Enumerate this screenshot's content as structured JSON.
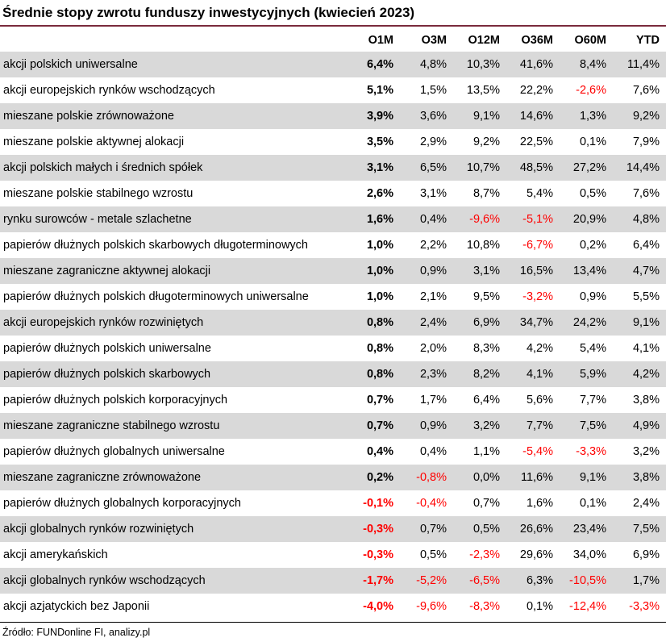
{
  "title": "Średnie stopy zwrotu funduszy inwestycyjnych (kwiecień 2023)",
  "source": "Źródło: FUNDonline FI, analizy.pl",
  "colors": {
    "title_rule": "#7a2a3c",
    "shade": "#d9d9d9",
    "negative": "#ff0000"
  },
  "chart_data": {
    "type": "table",
    "title": "Średnie stopy zwrotu funduszy inwestycyjnych (kwiecień 2023)",
    "columns": [
      "",
      "O1M",
      "O3M",
      "O12M",
      "O36M",
      "O60M",
      "YTD"
    ],
    "rows": [
      [
        "akcji polskich uniwersalne",
        "6,4%",
        "4,8%",
        "10,3%",
        "41,6%",
        "8,4%",
        "11,4%"
      ],
      [
        "akcji europejskich rynków wschodzących",
        "5,1%",
        "1,5%",
        "13,5%",
        "22,2%",
        "-2,6%",
        "7,6%"
      ],
      [
        "mieszane polskie zrównoważone",
        "3,9%",
        "3,6%",
        "9,1%",
        "14,6%",
        "1,3%",
        "9,2%"
      ],
      [
        "mieszane polskie aktywnej alokacji",
        "3,5%",
        "2,9%",
        "9,2%",
        "22,5%",
        "0,1%",
        "7,9%"
      ],
      [
        "akcji polskich małych i średnich spółek",
        "3,1%",
        "6,5%",
        "10,7%",
        "48,5%",
        "27,2%",
        "14,4%"
      ],
      [
        "mieszane polskie stabilnego wzrostu",
        "2,6%",
        "3,1%",
        "8,7%",
        "5,4%",
        "0,5%",
        "7,6%"
      ],
      [
        "rynku surowców - metale szlachetne",
        "1,6%",
        "0,4%",
        "-9,6%",
        "-5,1%",
        "20,9%",
        "4,8%"
      ],
      [
        "papierów dłużnych polskich skarbowych długoterminowych",
        "1,0%",
        "2,2%",
        "10,8%",
        "-6,7%",
        "0,2%",
        "6,4%"
      ],
      [
        "mieszane zagraniczne aktywnej alokacji",
        "1,0%",
        "0,9%",
        "3,1%",
        "16,5%",
        "13,4%",
        "4,7%"
      ],
      [
        "papierów dłużnych polskich długoterminowych uniwersalne",
        "1,0%",
        "2,1%",
        "9,5%",
        "-3,2%",
        "0,9%",
        "5,5%"
      ],
      [
        "akcji europejskich rynków rozwiniętych",
        "0,8%",
        "2,4%",
        "6,9%",
        "34,7%",
        "24,2%",
        "9,1%"
      ],
      [
        "papierów dłużnych polskich uniwersalne",
        "0,8%",
        "2,0%",
        "8,3%",
        "4,2%",
        "5,4%",
        "4,1%"
      ],
      [
        "papierów dłużnych polskich skarbowych",
        "0,8%",
        "2,3%",
        "8,2%",
        "4,1%",
        "5,9%",
        "4,2%"
      ],
      [
        "papierów dłużnych polskich korporacyjnych",
        "0,7%",
        "1,7%",
        "6,4%",
        "5,6%",
        "7,7%",
        "3,8%"
      ],
      [
        "mieszane zagraniczne stabilnego wzrostu",
        "0,7%",
        "0,9%",
        "3,2%",
        "7,7%",
        "7,5%",
        "4,9%"
      ],
      [
        "papierów dłużnych globalnych uniwersalne",
        "0,4%",
        "0,4%",
        "1,1%",
        "-5,4%",
        "-3,3%",
        "3,2%"
      ],
      [
        "mieszane zagraniczne zrównoważone",
        "0,2%",
        "-0,8%",
        "0,0%",
        "11,6%",
        "9,1%",
        "3,8%"
      ],
      [
        "papierów dłużnych globalnych korporacyjnych",
        "-0,1%",
        "-0,4%",
        "0,7%",
        "1,6%",
        "0,1%",
        "2,4%"
      ],
      [
        "akcji globalnych rynków rozwiniętych",
        "-0,3%",
        "0,7%",
        "0,5%",
        "26,6%",
        "23,4%",
        "7,5%"
      ],
      [
        "akcji amerykańskich",
        "-0,3%",
        "0,5%",
        "-2,3%",
        "29,6%",
        "34,0%",
        "6,9%"
      ],
      [
        "akcji globalnych rynków wschodzących",
        "-1,7%",
        "-5,2%",
        "-6,5%",
        "6,3%",
        "-10,5%",
        "1,7%"
      ],
      [
        "akcji azjatyckich bez Japonii",
        "-4,0%",
        "-9,6%",
        "-8,3%",
        "0,1%",
        "-12,4%",
        "-3,3%"
      ]
    ]
  }
}
